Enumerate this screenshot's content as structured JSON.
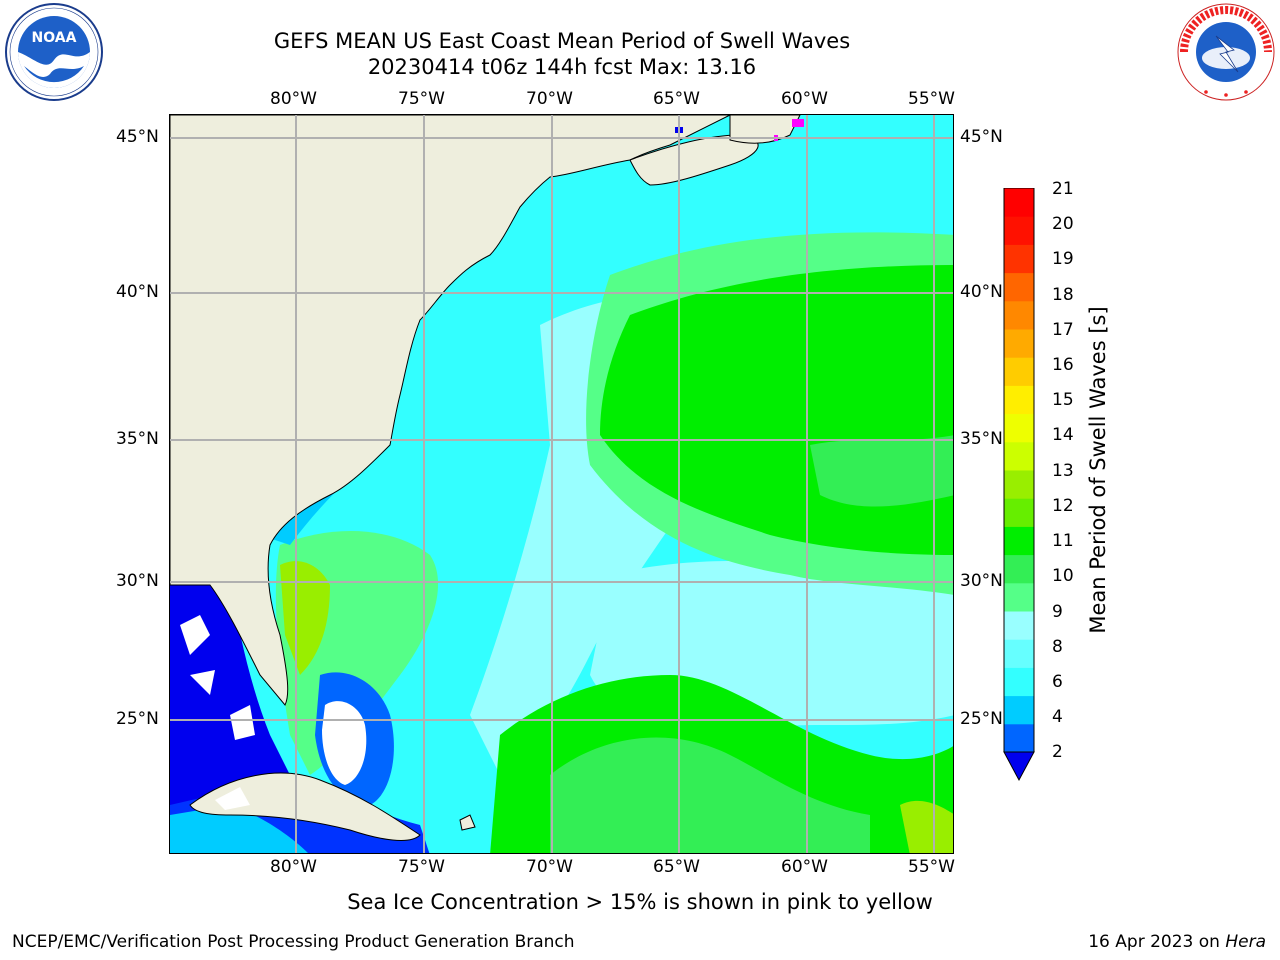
{
  "title": {
    "line1": "GEFS MEAN US East Coast Mean Period of Swell Waves",
    "line2": "20230414 t06z 144h fcst   Max: 13.16"
  },
  "logos": {
    "left": "NOAA",
    "left_ring_text": "NATIONAL OCEANIC AND ATMOSPHERIC ADMINISTRATION · U.S. DEPARTMENT OF COMMERCE",
    "right_ring_text": "NATIONAL WEATHER SERVICE"
  },
  "map": {
    "longitude_labels": [
      "80°W",
      "75°W",
      "70°W",
      "65°W",
      "60°W",
      "55°W"
    ],
    "latitude_labels": [
      "45°N",
      "40°N",
      "35°N",
      "30°N",
      "25°N"
    ],
    "colors": {
      "land": "#eeeedd",
      "grid": "#b0b0b0",
      "coast": "#000000"
    }
  },
  "colorbar": {
    "label": "Mean Period of Swell Waves [s]",
    "ticks": [
      "21",
      "20",
      "19",
      "18",
      "17",
      "16",
      "15",
      "14",
      "13",
      "12",
      "11",
      "10",
      "9",
      "8",
      "6",
      "4",
      "2"
    ],
    "colors_bottom_to_top": [
      "#0066ff",
      "#00ccff",
      "#33ffff",
      "#66ffff",
      "#99ffff",
      "#55ff88",
      "#33ee55",
      "#00ee00",
      "#66ee00",
      "#99ee00",
      "#ccff00",
      "#eeff00",
      "#ffee00",
      "#ffcc00",
      "#ffaa00",
      "#ff8800",
      "#ff6600",
      "#ff3300",
      "#ff1100",
      "#ff0000"
    ],
    "extend_color": "#0000ee"
  },
  "caption": "Sea Ice Concentration > 15% is shown in pink to yellow",
  "footer": {
    "left": "NCEP/EMC/Verification Post Processing Product Generation Branch",
    "right_date": "16 Apr 2023 on ",
    "right_host": "Hera"
  }
}
